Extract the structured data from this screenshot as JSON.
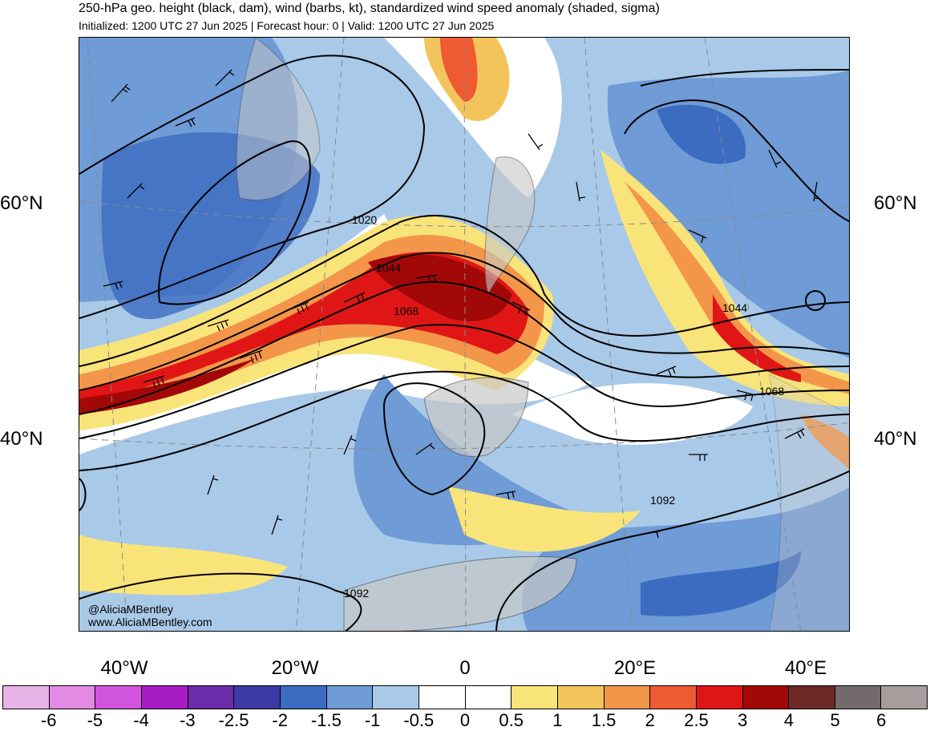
{
  "header": {
    "title": "250-hPa geo. height (black, dam), wind (barbs, kt), standardized wind speed anomaly (shaded, sigma)",
    "subtitle": "Initialized: 1200 UTC 27 Jun 2025 | Forecast hour: 0 | Valid: 1200 UTC 27 Jun 2025"
  },
  "map": {
    "lat_labels": {
      "n60_left": "60°N",
      "n60_right": "60°N",
      "n40_left": "40°N",
      "n40_right": "40°N"
    },
    "lon_labels": [
      "40°W",
      "20°W",
      "0",
      "20°E",
      "40°E"
    ],
    "contour_labels": [
      "1020",
      "1044",
      "1068",
      "1044",
      "1068",
      "1092",
      "1092"
    ],
    "credit": {
      "handle": "@AliciaMBentley",
      "site": "www.AliciaMBentley.com"
    },
    "land_color": "#c8c8c8",
    "coast_color": "#555555"
  },
  "colorbar": {
    "labels": [
      "-6",
      "-5",
      "-4",
      "-3",
      "-2.5",
      "-2",
      "-1.5",
      "-1",
      "-0.5",
      "0",
      "0.5",
      "1",
      "1.5",
      "2",
      "2.5",
      "3",
      "4",
      "5",
      "6"
    ],
    "colors": [
      "#e8b4e8",
      "#e28ae4",
      "#d154dc",
      "#a81cc4",
      "#6a2ca8",
      "#3e3aa4",
      "#3c6cc0",
      "#6f9bd6",
      "#a9c9e8",
      "#ffffff",
      "#ffffff",
      "#f9e47a",
      "#f4c45c",
      "#f3964a",
      "#ee5a32",
      "#e01616",
      "#a30808",
      "#6e2828",
      "#736b6b",
      "#a69d9d"
    ]
  }
}
